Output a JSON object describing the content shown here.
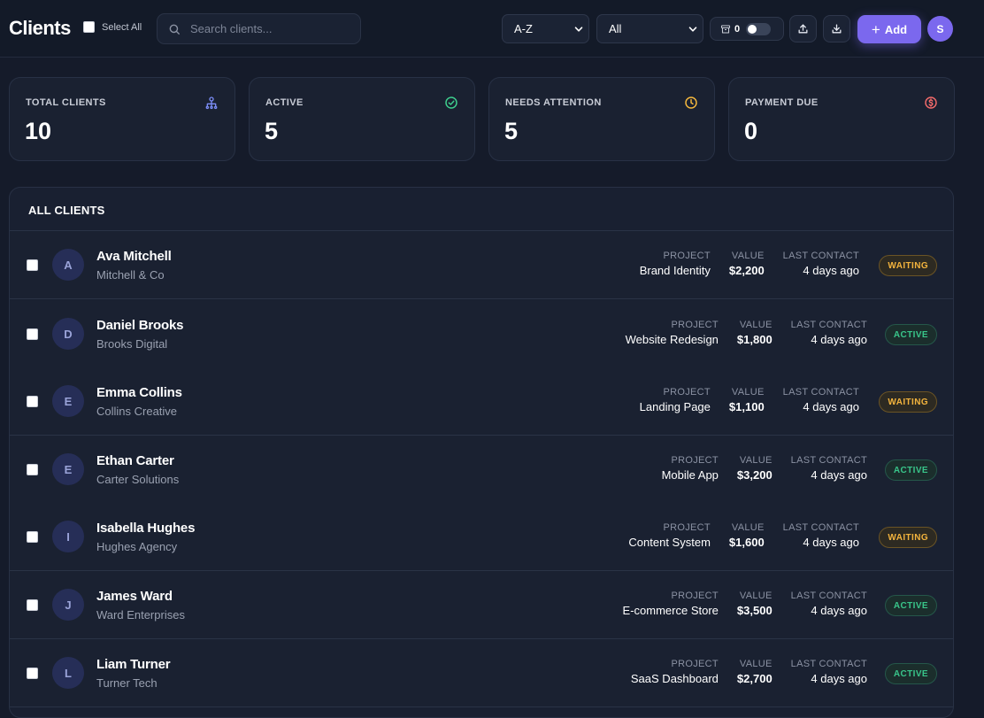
{
  "header": {
    "title": "Clients",
    "select_all_label": "Select All",
    "search_placeholder": "Search clients...",
    "sort_value": "A-Z",
    "filter_value": "All",
    "archive_count": "0",
    "add_label": "Add",
    "user_initial": "S"
  },
  "stats": [
    {
      "label": "TOTAL CLIENTS",
      "value": "10",
      "icon": "clients-icon",
      "color": "#7b8cf5"
    },
    {
      "label": "ACTIVE",
      "value": "5",
      "icon": "check-circle-icon",
      "color": "#3ecf8e"
    },
    {
      "label": "NEEDS ATTENTION",
      "value": "5",
      "icon": "clock-icon",
      "color": "#f5b83d"
    },
    {
      "label": "PAYMENT DUE",
      "value": "0",
      "icon": "dollar-circle-icon",
      "color": "#f06a6a"
    }
  ],
  "list": {
    "title": "ALL CLIENTS",
    "col_project": "PROJECT",
    "col_value": "VALUE",
    "col_contact": "LAST CONTACT",
    "rows": [
      {
        "initial": "A",
        "name": "Ava Mitchell",
        "company": "Mitchell & Co",
        "project": "Brand Identity",
        "value": "$2,200",
        "contact": "4 days ago",
        "status": "WAITING"
      },
      {
        "initial": "D",
        "name": "Daniel Brooks",
        "company": "Brooks Digital",
        "project": "Website Redesign",
        "value": "$1,800",
        "contact": "4 days ago",
        "status": "ACTIVE"
      },
      {
        "initial": "E",
        "name": "Emma Collins",
        "company": "Collins Creative",
        "project": "Landing Page",
        "value": "$1,100",
        "contact": "4 days ago",
        "status": "WAITING"
      },
      {
        "initial": "E",
        "name": "Ethan Carter",
        "company": "Carter Solutions",
        "project": "Mobile App",
        "value": "$3,200",
        "contact": "4 days ago",
        "status": "ACTIVE"
      },
      {
        "initial": "I",
        "name": "Isabella Hughes",
        "company": "Hughes Agency",
        "project": "Content System",
        "value": "$1,600",
        "contact": "4 days ago",
        "status": "WAITING"
      },
      {
        "initial": "J",
        "name": "James Ward",
        "company": "Ward Enterprises",
        "project": "E-commerce Store",
        "value": "$3,500",
        "contact": "4 days ago",
        "status": "ACTIVE"
      },
      {
        "initial": "L",
        "name": "Liam Turner",
        "company": "Turner Tech",
        "project": "SaaS Dashboard",
        "value": "$2,700",
        "contact": "4 days ago",
        "status": "ACTIVE"
      }
    ]
  },
  "colors": {
    "accent": "#7b68ee",
    "background": "#151b2a",
    "card": "#1a2131",
    "waiting": "#f2b33d",
    "active": "#39c58a"
  }
}
